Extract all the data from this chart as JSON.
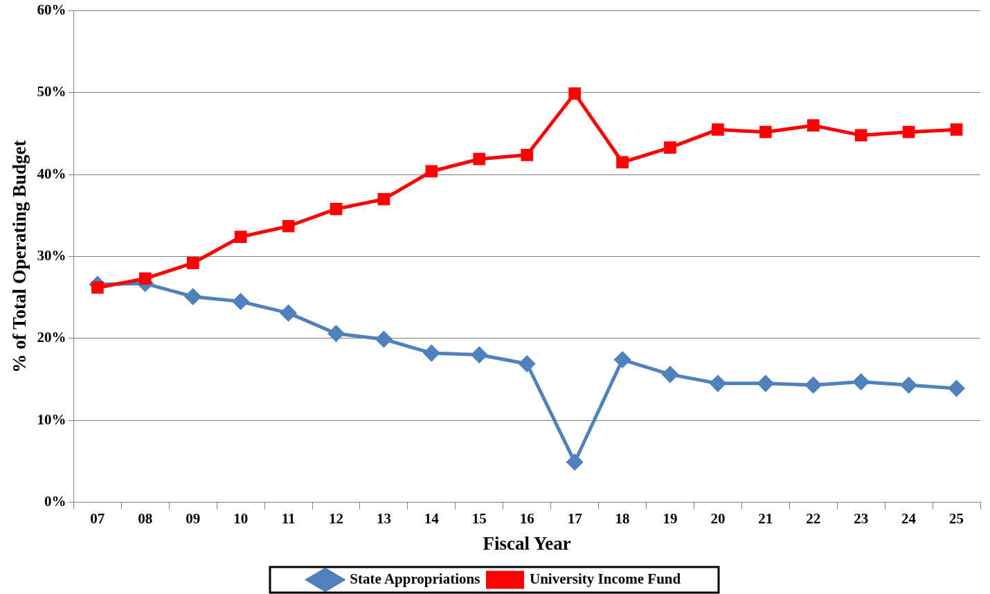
{
  "chart_data": {
    "type": "line",
    "xlabel": "Fiscal Year",
    "ylabel": "% of Total Operating Budget",
    "categories": [
      "07",
      "08",
      "09",
      "10",
      "11",
      "12",
      "13",
      "14",
      "15",
      "16",
      "17",
      "18",
      "19",
      "20",
      "21",
      "22",
      "23",
      "24",
      "25"
    ],
    "series": [
      {
        "name": "State Appropriations",
        "color": "#4f81bd",
        "marker": "diamond",
        "values": [
          26.6,
          26.7,
          25.1,
          24.5,
          23.1,
          20.6,
          19.9,
          18.2,
          18.0,
          16.9,
          4.9,
          17.4,
          15.6,
          14.5,
          14.5,
          14.3,
          14.7,
          14.3,
          13.9
        ]
      },
      {
        "name": "University Income Fund",
        "color": "#ff0000",
        "marker": "square",
        "values": [
          26.2,
          27.3,
          29.2,
          32.4,
          33.7,
          35.8,
          37.0,
          40.4,
          41.9,
          42.4,
          49.9,
          41.5,
          43.3,
          45.5,
          45.2,
          46.0,
          44.8,
          45.2,
          45.5
        ]
      }
    ],
    "ylim": [
      0,
      60
    ],
    "yticks": [
      {
        "value": 0,
        "label": "0%"
      },
      {
        "value": 10,
        "label": "10%"
      },
      {
        "value": 20,
        "label": "20%"
      },
      {
        "value": 30,
        "label": "30%"
      },
      {
        "value": 40,
        "label": "40%"
      },
      {
        "value": 50,
        "label": "50%"
      },
      {
        "value": 60,
        "label": "60%"
      }
    ],
    "grid": "y",
    "legend": "bottom",
    "line_style": "solid"
  }
}
